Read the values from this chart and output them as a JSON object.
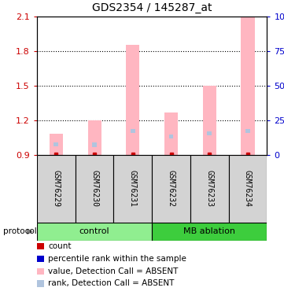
{
  "title": "GDS2354 / 145287_at",
  "samples": [
    "GSM76229",
    "GSM76230",
    "GSM76231",
    "GSM76232",
    "GSM76233",
    "GSM76234"
  ],
  "ylim_left": [
    0.9,
    2.1
  ],
  "ylim_right": [
    0,
    100
  ],
  "yticks_left": [
    0.9,
    1.2,
    1.5,
    1.8,
    2.1
  ],
  "yticks_right": [
    0,
    25,
    50,
    75,
    100
  ],
  "bar_values": [
    1.08,
    1.2,
    1.85,
    1.27,
    1.5,
    2.1
  ],
  "rank_values": [
    0.975,
    0.97,
    1.09,
    1.04,
    1.07,
    1.09
  ],
  "bar_color": "#ffb6c1",
  "rank_color": "#b0c4de",
  "count_color": "#cc0000",
  "left_tick_color": "#cc0000",
  "right_tick_color": "#0000cc",
  "legend_items": [
    {
      "label": "count",
      "color": "#cc0000"
    },
    {
      "label": "percentile rank within the sample",
      "color": "#0000cc"
    },
    {
      "label": "value, Detection Call = ABSENT",
      "color": "#ffb6c1"
    },
    {
      "label": "rank, Detection Call = ABSENT",
      "color": "#b0c4de"
    }
  ],
  "ctrl_color": "#90ee90",
  "mb_color": "#3dcd3d",
  "sample_box_color": "#d3d3d3"
}
